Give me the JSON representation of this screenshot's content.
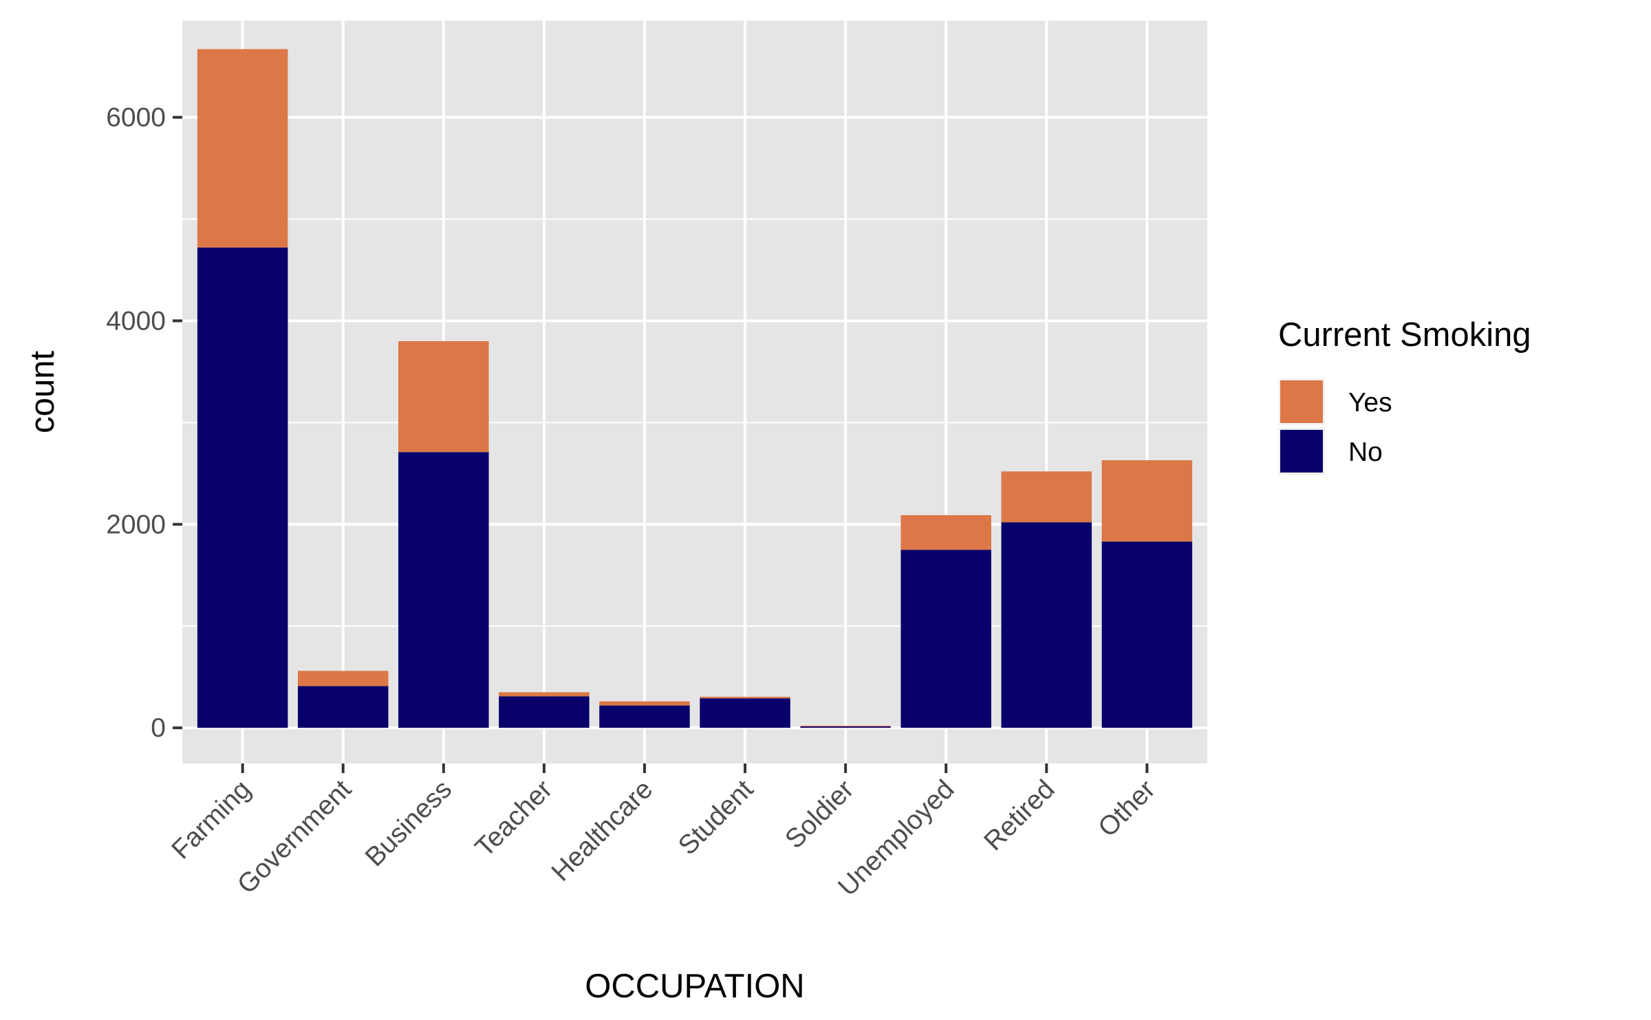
{
  "chart_data": {
    "type": "bar",
    "stacked": true,
    "categories": [
      "Farming",
      "Government",
      "Business",
      "Teacher",
      "Healthcare",
      "Student",
      "Soldier",
      "Unemployed",
      "Retired",
      "Other"
    ],
    "series": [
      {
        "name": "No",
        "color": "#08006B",
        "values": [
          4720,
          410,
          2710,
          310,
          220,
          290,
          15,
          1750,
          2020,
          1830
        ]
      },
      {
        "name": "Yes",
        "color": "#DC7748",
        "values": [
          1950,
          150,
          1090,
          40,
          40,
          15,
          5,
          340,
          500,
          800
        ]
      }
    ],
    "xlabel": "OCCUPATION",
    "ylabel": "count",
    "ylim": [
      -350,
      6950
    ],
    "yticks": [
      0,
      2000,
      4000,
      6000
    ],
    "ytick_labels": [
      "0",
      "2000",
      "4000",
      "6000"
    ],
    "grid": true,
    "panel_background": "#E5E5E5",
    "legend": {
      "title": "Current Smoking",
      "placement": "right",
      "items": [
        {
          "label": "Yes",
          "color": "#DC7748"
        },
        {
          "label": "No",
          "color": "#08006B"
        }
      ]
    }
  }
}
